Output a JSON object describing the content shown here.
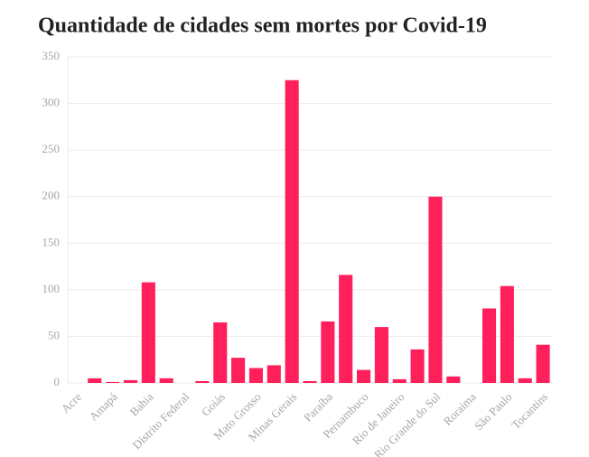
{
  "chart_data": {
    "type": "bar",
    "title": "Quantidade de cidades sem mortes por Covid-19",
    "categories": [
      "Acre",
      null,
      "Amapá",
      null,
      "Bahia",
      null,
      "Distrito Federal",
      null,
      "Goiás",
      null,
      "Mato Grosso",
      null,
      "Minas Gerais",
      null,
      "Paraíba",
      null,
      "Pernambuco",
      null,
      "Rio de Janeiro",
      null,
      "Rio Grande do Sul",
      null,
      "Roraima",
      null,
      "São Paulo",
      null,
      "Tocantins"
    ],
    "values": [
      0,
      5,
      1,
      3,
      108,
      5,
      0,
      2,
      65,
      27,
      16,
      19,
      325,
      2,
      66,
      116,
      14,
      60,
      4,
      36,
      200,
      7,
      0,
      80,
      104,
      5,
      41
    ],
    "color": "#ff1f5a",
    "ylim": [
      0,
      350
    ],
    "yticks": [
      0,
      50,
      100,
      150,
      200,
      250,
      300,
      350
    ],
    "grid": true
  }
}
